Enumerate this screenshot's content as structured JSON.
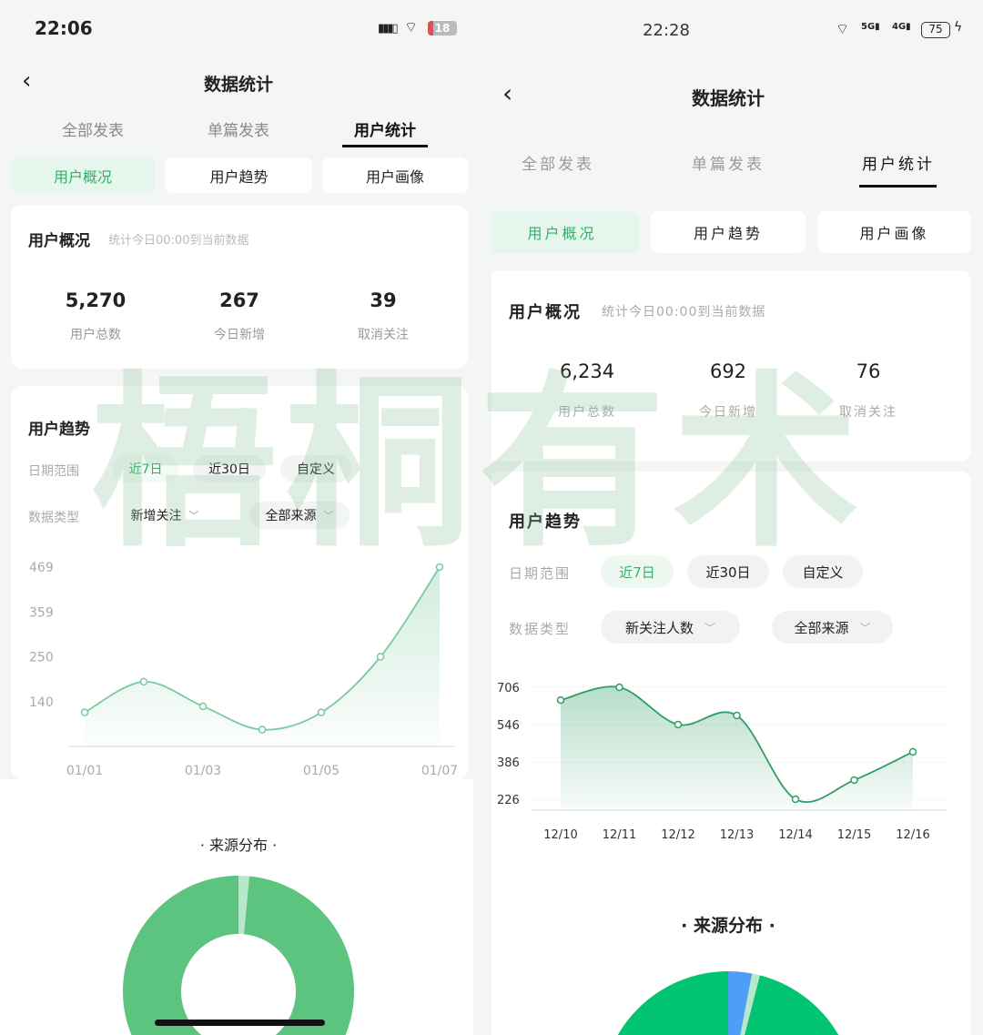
{
  "left": {
    "status": {
      "time": "22:06",
      "battery": "18"
    },
    "header": {
      "title": "数据统计"
    },
    "tabs": [
      {
        "label": "全部发表"
      },
      {
        "label": "单篇发表"
      },
      {
        "label": "用户统计",
        "active": true
      }
    ],
    "subtabs": [
      {
        "label": "用户概况",
        "active": true
      },
      {
        "label": "用户趋势"
      },
      {
        "label": "用户画像"
      }
    ],
    "overview": {
      "title": "用户概况",
      "subtitle": "统计今日00:00到当前数据",
      "stats": [
        {
          "value": "5,270",
          "label": "用户总数"
        },
        {
          "value": "267",
          "label": "今日新增"
        },
        {
          "value": "39",
          "label": "取消关注"
        }
      ]
    },
    "trend": {
      "title": "用户趋势",
      "date_range_label": "日期范围",
      "date_options": [
        {
          "label": "近7日",
          "active": true
        },
        {
          "label": "近30日"
        },
        {
          "label": "自定义"
        }
      ],
      "data_type_label": "数据类型",
      "data_type_value": "新增关注",
      "source_value": "全部来源"
    },
    "source_title": "· 来源分布 ·"
  },
  "right": {
    "status": {
      "time": "22:28",
      "battery": "75",
      "network": [
        "5G",
        "4G"
      ]
    },
    "header": {
      "title": "数据统计"
    },
    "tabs": [
      {
        "label": "全部发表"
      },
      {
        "label": "单篇发表"
      },
      {
        "label": "用户统计",
        "active": true
      }
    ],
    "subtabs": [
      {
        "label": "用户概况",
        "active": true
      },
      {
        "label": "用户趋势"
      },
      {
        "label": "用户画像"
      }
    ],
    "overview": {
      "title": "用户概况",
      "subtitle": "统计今日00:00到当前数据",
      "stats": [
        {
          "value": "6,234",
          "label": "用户总数"
        },
        {
          "value": "692",
          "label": "今日新增"
        },
        {
          "value": "76",
          "label": "取消关注"
        }
      ]
    },
    "trend": {
      "title": "用户趋势",
      "date_range_label": "日期范围",
      "date_options": [
        {
          "label": "近7日",
          "active": true
        },
        {
          "label": "近30日"
        },
        {
          "label": "自定义"
        }
      ],
      "data_type_label": "数据类型",
      "data_type_value": "新关注人数",
      "source_value": "全部来源"
    },
    "source_title": "· 来源分布 ·"
  },
  "watermark": "梧桐有术",
  "colors": {
    "accent": "#2fb268",
    "line_left": "#7cc9a0",
    "line_right": "#2e9e68",
    "pie_green_left": "#5cc47e",
    "pie_green_right": "#00c472",
    "pie_blue": "#4e9ef7",
    "pie_light": "#b8e8cc"
  },
  "chart_data": [
    {
      "type": "area",
      "x": [
        "01/01",
        "01/02",
        "01/03",
        "01/04",
        "01/05",
        "01/06",
        "01/07"
      ],
      "xtick_labels": [
        "01/01",
        "01/03",
        "01/05",
        "01/07"
      ],
      "values": [
        114,
        189,
        129,
        72,
        114,
        250,
        469
      ],
      "yticks": [
        "469",
        "359",
        "250",
        "140"
      ],
      "ylim": [
        31,
        469
      ],
      "grid": false
    },
    {
      "type": "area",
      "x": [
        "12/10",
        "12/11",
        "12/12",
        "12/13",
        "12/14",
        "12/15",
        "12/16"
      ],
      "xtick_labels": [
        "12/10",
        "12/11",
        "12/12",
        "12/13",
        "12/14",
        "12/15",
        "12/16"
      ],
      "values": [
        651,
        706,
        546,
        585,
        226,
        308,
        429
      ],
      "yticks": [
        "706",
        "546",
        "386",
        "226"
      ],
      "ylim": [
        179,
        706
      ],
      "grid": true
    },
    {
      "type": "pie",
      "style": "donut",
      "values": [
        0.985,
        0.015
      ],
      "colors": [
        "#5cc47e",
        "#b8e8cc"
      ]
    },
    {
      "type": "pie",
      "values": [
        0.96,
        0.01,
        0.03
      ],
      "colors": [
        "#00c472",
        "#b8e8cc",
        "#4e9ef7"
      ]
    }
  ]
}
